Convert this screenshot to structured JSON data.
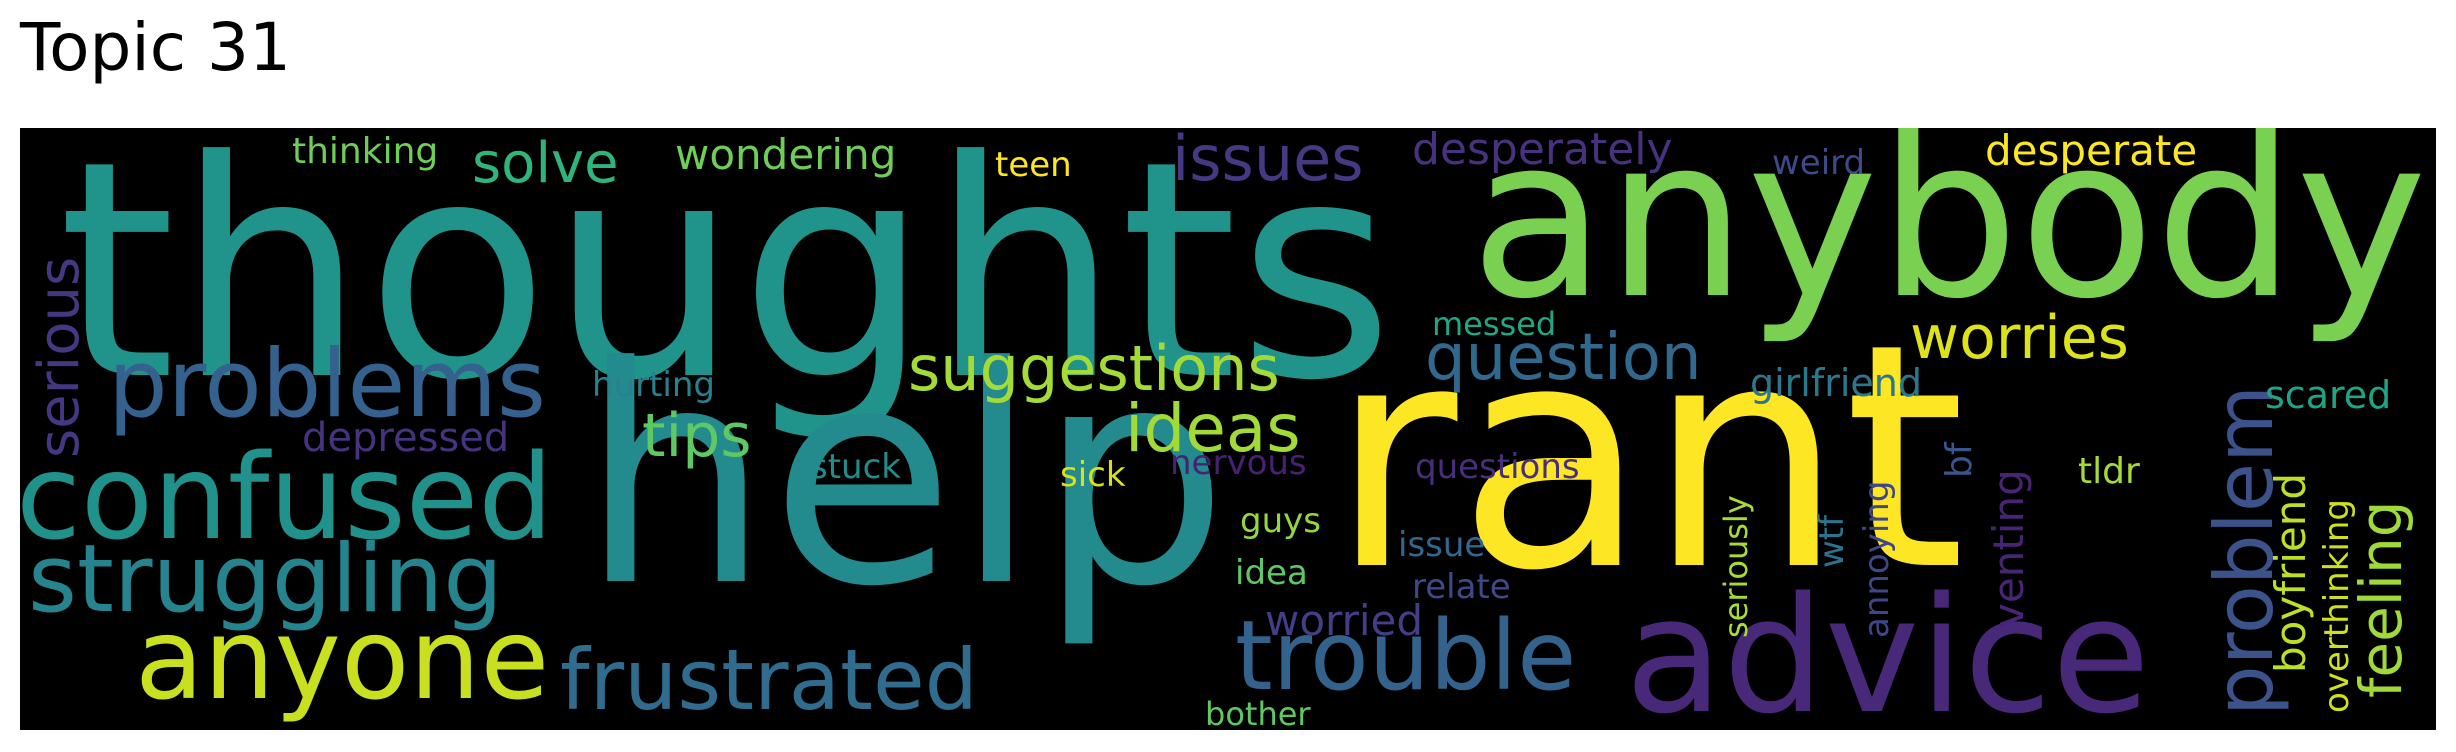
{
  "title": "Topic 31",
  "colors": {
    "background": "#000000",
    "page": "#ffffff",
    "title": "#000000"
  },
  "words": [
    {
      "text": "thoughts",
      "color": "#20948b"
    },
    {
      "text": "help",
      "color": "#238a8d"
    },
    {
      "text": "rant",
      "color": "#fde725"
    },
    {
      "text": "anybody",
      "color": "#7ad151"
    },
    {
      "text": "advice",
      "color": "#482878"
    },
    {
      "text": "confused",
      "color": "#21918c"
    },
    {
      "text": "problems",
      "color": "#34618d"
    },
    {
      "text": "struggling",
      "color": "#25848e"
    },
    {
      "text": "anyone",
      "color": "#c8e020"
    },
    {
      "text": "frustrated",
      "color": "#2f6c8e"
    },
    {
      "text": "trouble",
      "color": "#33638d"
    },
    {
      "text": "problem",
      "color": "#3b528b"
    },
    {
      "text": "suggestions",
      "color": "#a5db36"
    },
    {
      "text": "ideas",
      "color": "#a2da37"
    },
    {
      "text": "question",
      "color": "#31688e"
    },
    {
      "text": "worries",
      "color": "#dde318"
    },
    {
      "text": "issues",
      "color": "#443983"
    },
    {
      "text": "solve",
      "color": "#2fb47c"
    },
    {
      "text": "wondering",
      "color": "#6ece58"
    },
    {
      "text": "desperately",
      "color": "#46327e"
    },
    {
      "text": "desperate",
      "color": "#fde725"
    },
    {
      "text": "tips",
      "color": "#5ec962"
    },
    {
      "text": "serious",
      "color": "#453781"
    },
    {
      "text": "feeling",
      "color": "#a0da39"
    },
    {
      "text": "boyfriend",
      "color": "#bddf26"
    },
    {
      "text": "thinking",
      "color": "#6ece58"
    },
    {
      "text": "depressed",
      "color": "#46337f"
    },
    {
      "text": "hurting",
      "color": "#26828e"
    },
    {
      "text": "girlfriend",
      "color": "#2a788e"
    },
    {
      "text": "scared",
      "color": "#20a486"
    },
    {
      "text": "worried",
      "color": "#433e85"
    },
    {
      "text": "teen",
      "color": "#fde725"
    },
    {
      "text": "weird",
      "color": "#3e4a89"
    },
    {
      "text": "messed",
      "color": "#22a785"
    },
    {
      "text": "stuck",
      "color": "#228c8d"
    },
    {
      "text": "sick",
      "color": "#d8e219"
    },
    {
      "text": "nervous",
      "color": "#482173"
    },
    {
      "text": "questions",
      "color": "#472f7d"
    },
    {
      "text": "tldr",
      "color": "#a5db36"
    },
    {
      "text": "guys",
      "color": "#93d741"
    },
    {
      "text": "idea",
      "color": "#5ec962"
    },
    {
      "text": "issue",
      "color": "#31688e"
    },
    {
      "text": "relate",
      "color": "#3f4889"
    },
    {
      "text": "bother",
      "color": "#5ec962"
    },
    {
      "text": "venting",
      "color": "#482475"
    },
    {
      "text": "overthinking",
      "color": "#d0e11c"
    },
    {
      "text": "seriously",
      "color": "#a8db34"
    },
    {
      "text": "wtf",
      "color": "#2c738e"
    },
    {
      "text": "annoying",
      "color": "#3f4788"
    },
    {
      "text": "bf",
      "color": "#3a548c"
    }
  ]
}
